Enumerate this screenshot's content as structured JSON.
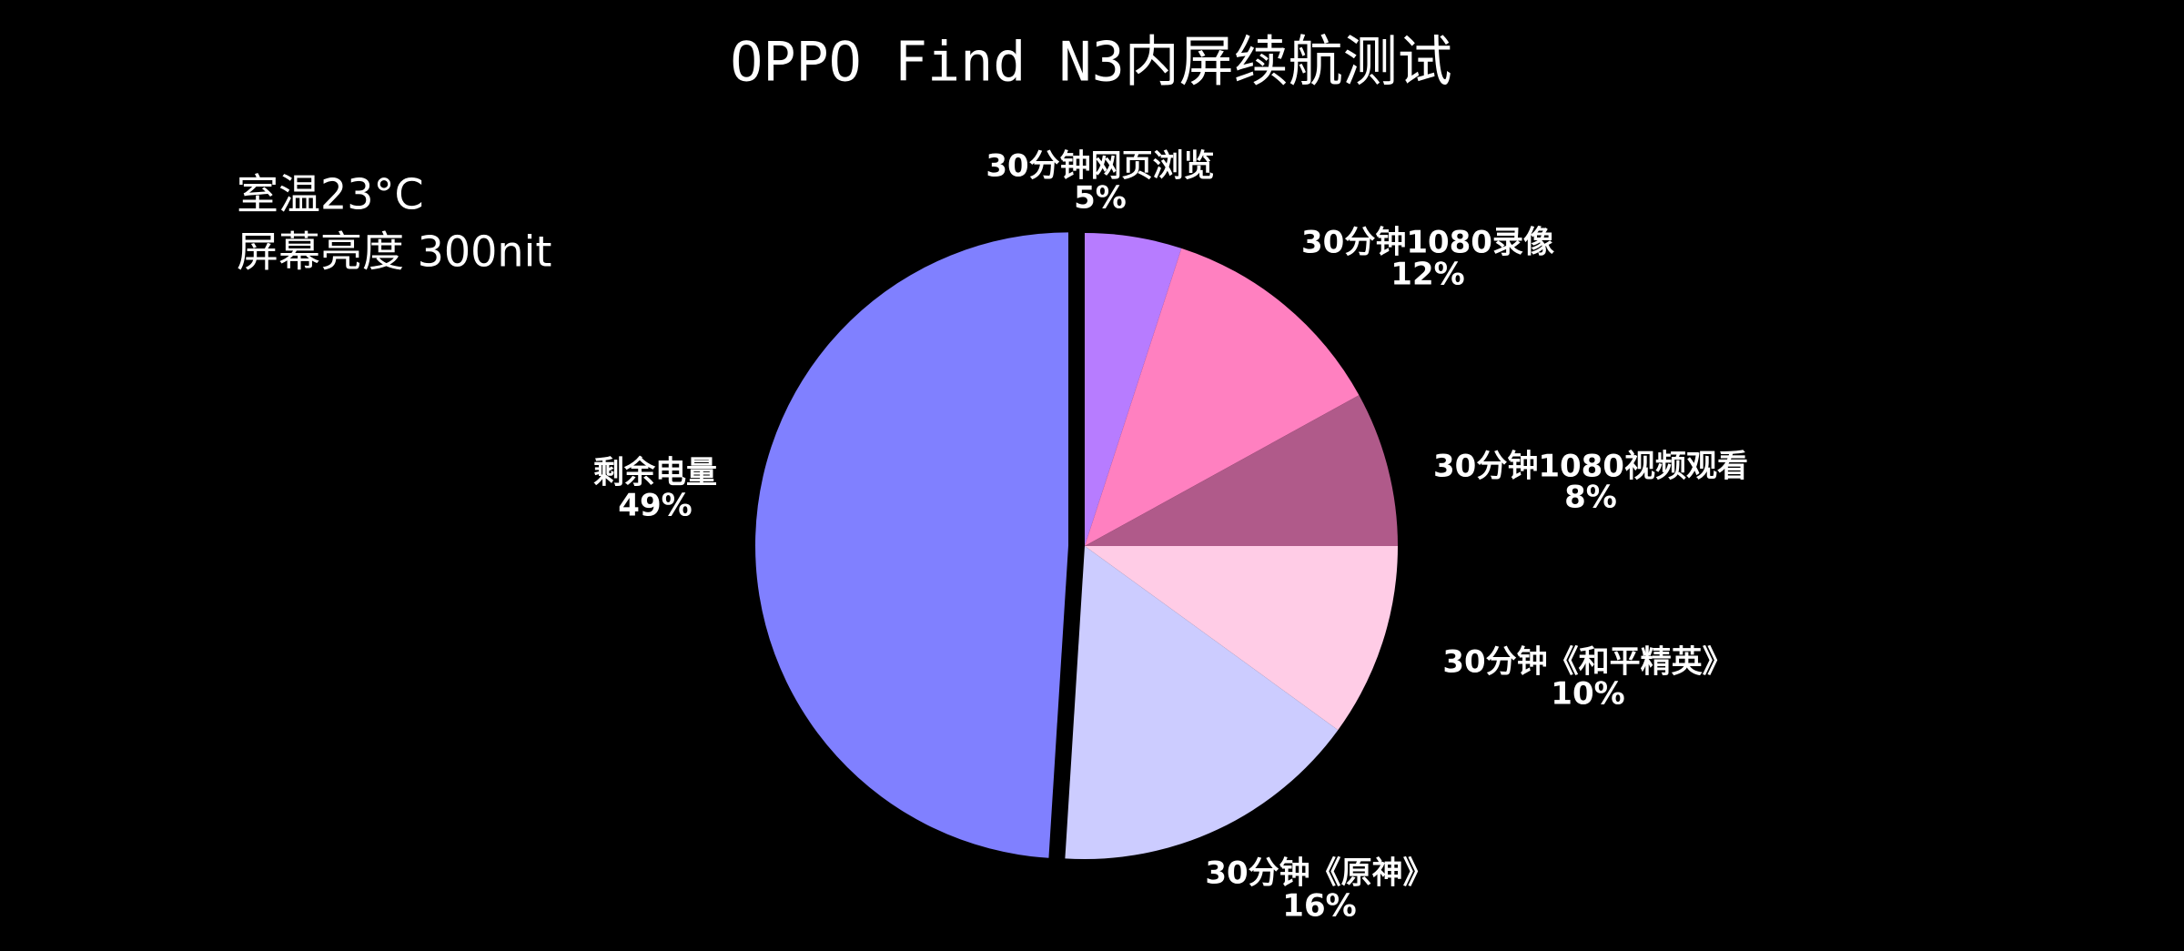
{
  "chart_data": {
    "type": "pie",
    "title": "OPPO Find N3内屏续航测试",
    "notes": [
      "室温23°C",
      "屏幕亮度 300nit"
    ],
    "categories": [
      "30分钟网页浏览",
      "30分钟1080录像",
      "30分钟1080视频观看",
      "30分钟《和平精英》",
      "30分钟《原神》",
      "剩余电量"
    ],
    "values": [
      5,
      12,
      8,
      10,
      16,
      49
    ],
    "value_labels": [
      "5%",
      "12%",
      "8%",
      "10%",
      "16%",
      "49%"
    ],
    "colors": [
      "#b77cff",
      "#ff80c0",
      "#b05a8a",
      "#ffcce6",
      "#ccccff",
      "#8080ff"
    ]
  }
}
